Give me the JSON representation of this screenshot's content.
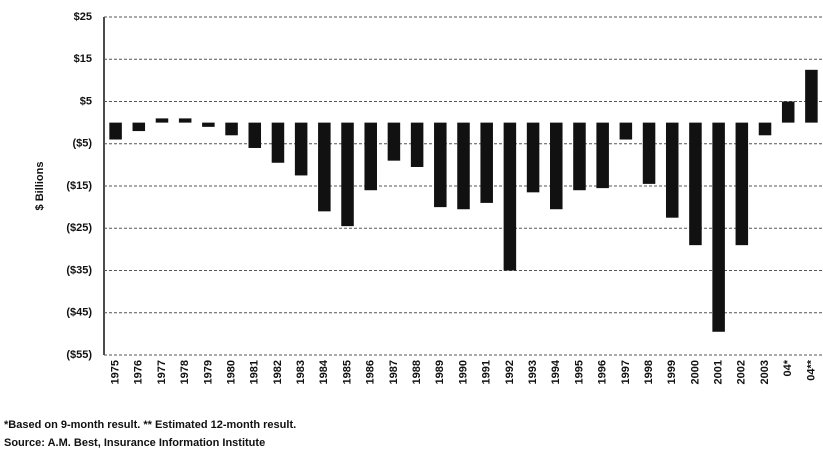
{
  "chart_data": {
    "type": "bar",
    "y_label": "$ Billions",
    "categories": [
      "1975",
      "1976",
      "1977",
      "1978",
      "1979",
      "1980",
      "1981",
      "1982",
      "1983",
      "1984",
      "1985",
      "1986",
      "1987",
      "1988",
      "1989",
      "1990",
      "1991",
      "1992",
      "1993",
      "1994",
      "1995",
      "1996",
      "1997",
      "1998",
      "1999",
      "2000",
      "2001",
      "2002",
      "2003",
      "04*",
      "04**"
    ],
    "values": [
      -4,
      -2,
      1,
      1,
      -1,
      -3,
      -6,
      -9.5,
      -12.5,
      -21,
      -24.5,
      -16,
      -9,
      -10.5,
      -20,
      -20.5,
      -19,
      -35,
      -16.5,
      -20.5,
      -16,
      -15.5,
      -4,
      -14.5,
      -22.5,
      -29,
      -49.5,
      -29,
      -3,
      5,
      12.5
    ],
    "color": "#111111",
    "ylim": [
      -55,
      25
    ],
    "yticks": [
      {
        "value": 25,
        "label": "$25"
      },
      {
        "value": 15,
        "label": "$15"
      },
      {
        "value": 5,
        "label": "$5"
      },
      {
        "value": -5,
        "label": "($5)"
      },
      {
        "value": -15,
        "label": "($15)"
      },
      {
        "value": -25,
        "label": "($25)"
      },
      {
        "value": -35,
        "label": "($35)"
      },
      {
        "value": -45,
        "label": "($45)"
      },
      {
        "value": -55,
        "label": "($55)"
      }
    ],
    "grid": true,
    "notes": [
      "*Based on 9-month result. ** Estimated 12-month result.",
      "Source:  A.M. Best, Insurance Information Institute"
    ]
  }
}
